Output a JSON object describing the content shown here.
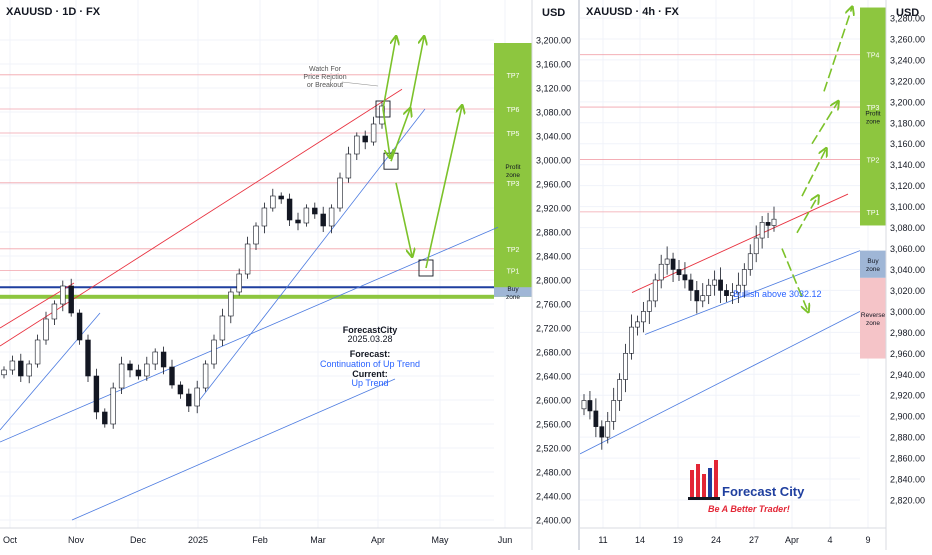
{
  "left_chart": {
    "symbol_label": "XAUUSD · 1D · FX",
    "currency": "USD",
    "watch_note": [
      "Watch For",
      "Price Rejction",
      "or Breakout"
    ],
    "analysis": {
      "author": "ForecastCity",
      "date": "2025.03.28",
      "forecast_label": "Forecast:",
      "forecast_value": "Continuation of Up Trend",
      "current_label": "Current:",
      "current_value": "Up Trend"
    }
  },
  "right_chart": {
    "symbol_label": "XAUUSD · 4h · FX",
    "currency": "USD",
    "bullish_note": "Bullish above 3032.12",
    "logo": {
      "name": "Forecast City",
      "tagline": "Be A Better Trader!"
    }
  },
  "chart_data": [
    {
      "type": "candlestick",
      "title": "XAUUSD · 1D · FX",
      "ylabel": "USD",
      "ylim": [
        2400,
        3240
      ],
      "y_ticks": [
        2400,
        2440,
        2480,
        2520,
        2560,
        2600,
        2640,
        2680,
        2720,
        2760,
        2800,
        2840,
        2880,
        2920,
        2960,
        3000,
        3040,
        3080,
        3120,
        3160,
        3200
      ],
      "y_tick_labels": [
        "2,400.00",
        "2,440.00",
        "2,480.00",
        "2,520.00",
        "2,560.00",
        "2,600.00",
        "2,640.00",
        "2,680.00",
        "2,720.00",
        "2,760.00",
        "2,800.00",
        "2,840.00",
        "2,880.00",
        "2,920.00",
        "2,960.00",
        "3,000.00",
        "3,040.00",
        "3,080.00",
        "3,120.00",
        "3,160.00",
        "3,200.00"
      ],
      "x_labels": [
        "Oct",
        "Nov",
        "Dec",
        "2025",
        "Feb",
        "Mar",
        "Apr",
        "May",
        "Jun"
      ],
      "grid": true,
      "levels": [
        {
          "label": "TP1",
          "value": 2816
        },
        {
          "label": "TP2",
          "value": 2852
        },
        {
          "label": "TP3",
          "value": 2962
        },
        {
          "label": "TP5",
          "value": 3045
        },
        {
          "label": "TP6",
          "value": 3085
        },
        {
          "label": "TP7",
          "value": 3142
        }
      ],
      "zones": [
        {
          "label": "Profit zone",
          "from": 2772,
          "to": 3195,
          "color": "#8dc63f"
        },
        {
          "label": "Buy zone",
          "from": 2772,
          "to": 2788,
          "color": "#9fb6d6"
        }
      ],
      "close_approx": [
        2650,
        2665,
        2640,
        2660,
        2700,
        2735,
        2760,
        2790,
        2745,
        2700,
        2640,
        2580,
        2560,
        2620,
        2660,
        2650,
        2640,
        2660,
        2680,
        2655,
        2625,
        2610,
        2590,
        2620,
        2660,
        2700,
        2740,
        2780,
        2810,
        2860,
        2890,
        2920,
        2940,
        2935,
        2900,
        2895,
        2920,
        2910,
        2890,
        2920,
        2970,
        3010,
        3040,
        3030,
        3060,
        3090
      ],
      "series": [
        {
          "name": "",
          "values": []
        }
      ]
    },
    {
      "type": "candlestick",
      "title": "XAUUSD · 4h · FX",
      "ylabel": "USD",
      "ylim": [
        2800,
        3300
      ],
      "y_ticks": [
        2820,
        2840,
        2860,
        2880,
        2900,
        2920,
        2940,
        2960,
        2980,
        3000,
        3020,
        3040,
        3060,
        3080,
        3100,
        3120,
        3140,
        3160,
        3180,
        3200,
        3220,
        3240,
        3260,
        3280
      ],
      "y_tick_labels": [
        "2,820.00",
        "2,840.00",
        "2,860.00",
        "2,880.00",
        "2,900.00",
        "2,920.00",
        "2,940.00",
        "2,960.00",
        "2,980.00",
        "3,000.00",
        "3,020.00",
        "3,040.00",
        "3,060.00",
        "3,080.00",
        "3,100.00",
        "3,120.00",
        "3,140.00",
        "3,160.00",
        "3,180.00",
        "3,200.00",
        "3,220.00",
        "3,240.00",
        "3,260.00",
        "3,280.00"
      ],
      "x_labels": [
        "11",
        "14",
        "19",
        "24",
        "27",
        "Apr",
        "4",
        "9"
      ],
      "grid": true,
      "levels": [
        {
          "label": "TP1",
          "value": 3095
        },
        {
          "label": "TP2",
          "value": 3145
        },
        {
          "label": "TP3",
          "value": 3195
        },
        {
          "label": "TP4",
          "value": 3245
        },
        {
          "label": "TP5",
          "value": 3300
        }
      ],
      "zones": [
        {
          "label": "Profit zone",
          "from": 3082,
          "to": 3300,
          "color": "#8dc63f"
        },
        {
          "label": "Buy zone",
          "from": 3032,
          "to": 3058,
          "color": "#9fb6d6"
        },
        {
          "label": "Reverse zone",
          "from": 2955,
          "to": 3032,
          "color": "#f5c4c8"
        }
      ],
      "close_approx": [
        2915,
        2905,
        2890,
        2880,
        2895,
        2915,
        2935,
        2960,
        2985,
        2990,
        3000,
        3010,
        3030,
        3045,
        3050,
        3040,
        3035,
        3030,
        3020,
        3010,
        3015,
        3025,
        3030,
        3020,
        3015,
        3018,
        3025,
        3040,
        3055,
        3070,
        3085,
        3082,
        3088
      ]
    }
  ]
}
